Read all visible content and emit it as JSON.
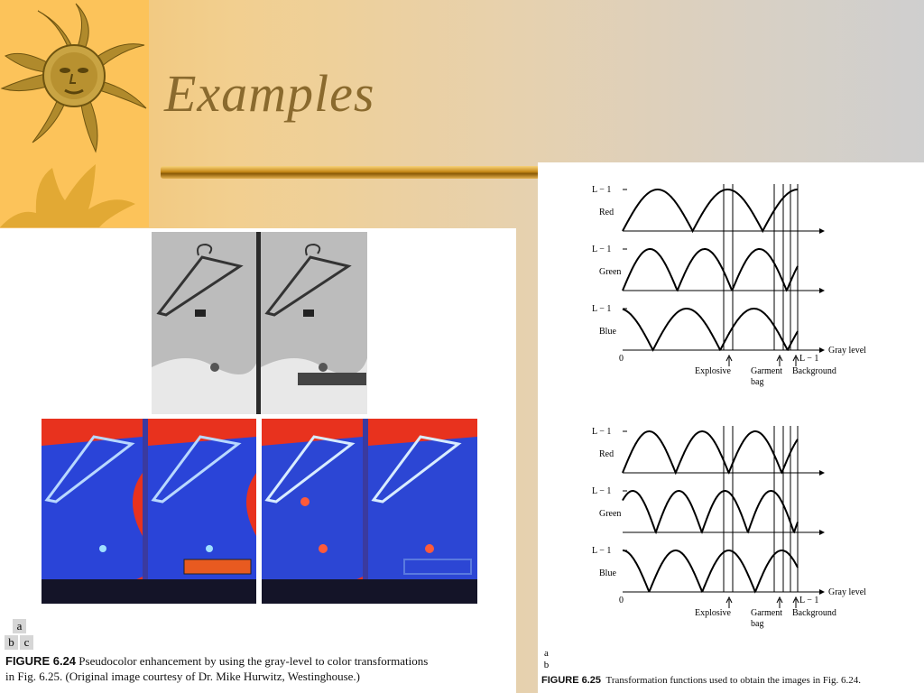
{
  "slide": {
    "title": "Examples"
  },
  "figure_left": {
    "panel_labels": [
      "a",
      "b",
      "c"
    ],
    "caption_label": "FIGURE 6.24",
    "caption_line1": "Pseudocolor enhancement by using the gray-level to color transformations",
    "caption_line2": "in Fig. 6.25. (Original image courtesy of Dr. Mike Hurwitz, Westinghouse.)"
  },
  "figure_right": {
    "panel_labels": [
      "a",
      "b"
    ],
    "caption_label": "FIGURE 6.25",
    "caption_text": "Transformation functions used to obtain the images in Fig. 6.24.",
    "channel_labels": [
      "Red",
      "Green",
      "Blue"
    ],
    "level_label": "L − 1",
    "zero_label": "0",
    "axis_label": "Gray level",
    "end_label": "L − 1",
    "annotations": {
      "explosive": "Explosive",
      "garment_line1": "Garment",
      "garment_line2": "bag",
      "background": "Background"
    }
  },
  "colors": {
    "title": "#8a6a2e",
    "sun_panel": "#fcc35a",
    "pseudo_red": "#e8321e",
    "pseudo_blue": "#2a44d8"
  }
}
